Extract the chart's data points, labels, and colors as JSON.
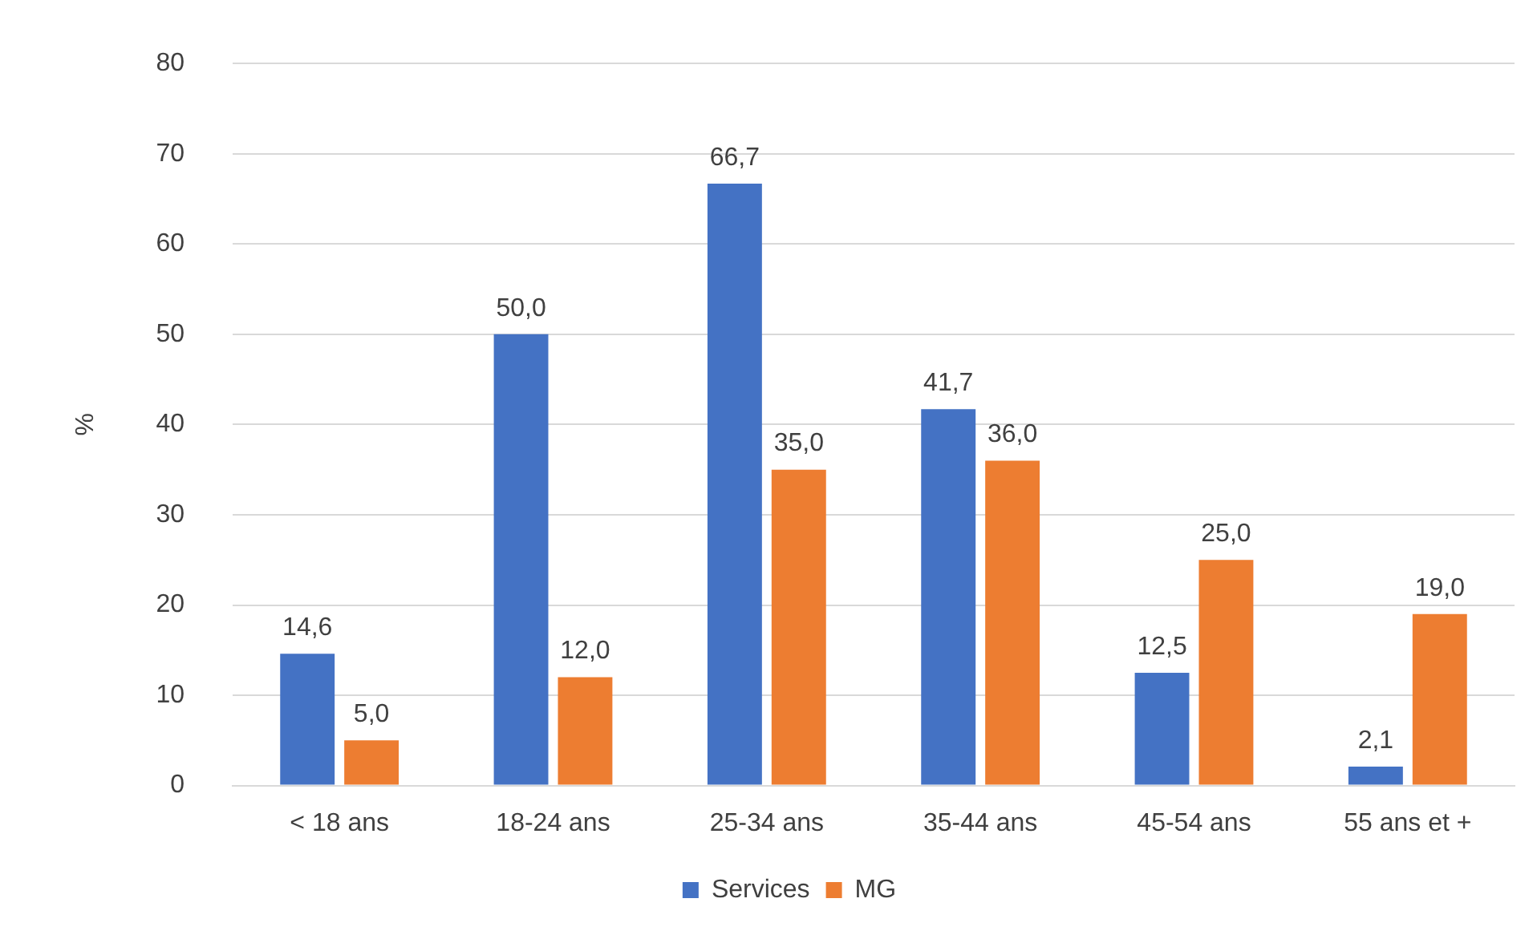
{
  "chart_data": {
    "type": "bar",
    "ylabel": "%",
    "categories": [
      "< 18 ans",
      "18-24 ans",
      "25-34 ans",
      "35-44 ans",
      "45-54 ans",
      "55 ans et +"
    ],
    "series": [
      {
        "name": "Services",
        "color": "#4472c4",
        "values": [
          14.6,
          50.0,
          66.7,
          41.7,
          12.5,
          2.1
        ],
        "value_labels": [
          "14,6",
          "50,0",
          "66,7",
          "41,7",
          "12,5",
          "2,1"
        ]
      },
      {
        "name": "MG",
        "color": "#ed7d31",
        "values": [
          5.0,
          12.0,
          35.0,
          36.0,
          25.0,
          19.0
        ],
        "value_labels": [
          "5,0",
          "12,0",
          "35,0",
          "36,0",
          "25,0",
          "19,0"
        ]
      }
    ],
    "ylim": [
      0,
      80
    ],
    "yticks": [
      0,
      10,
      20,
      30,
      40,
      50,
      60,
      70,
      80
    ],
    "grid": "y",
    "legend": "bottom"
  }
}
